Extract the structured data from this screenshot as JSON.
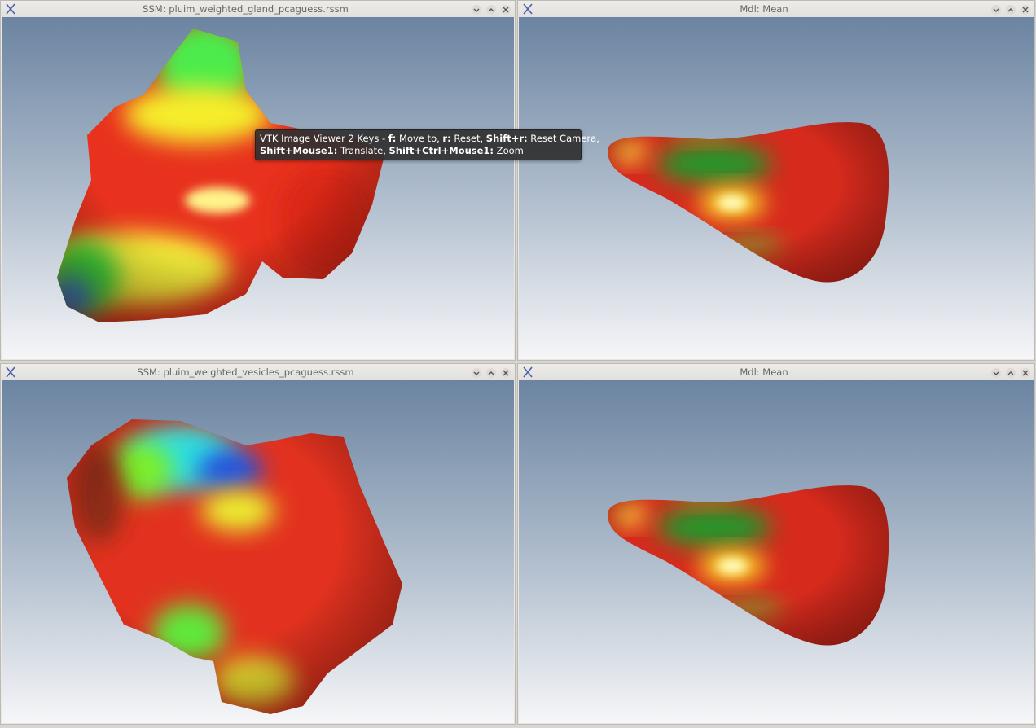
{
  "windows": [
    {
      "title": "SSM: pluim_weighted_gland_pcaguess.rssm"
    },
    {
      "title": "Mdl: Mean"
    },
    {
      "title": "SSM: pluim_weighted_vesicles_pcaguess.rssm"
    },
    {
      "title": "Mdl: Mean"
    }
  ],
  "tooltip": {
    "lines": [
      [
        {
          "text": "VTK Image Viewer 2 Keys - ",
          "bold": false
        },
        {
          "text": "f:",
          "bold": true
        },
        {
          "text": " Move to, ",
          "bold": false
        },
        {
          "text": "r:",
          "bold": true
        },
        {
          "text": " Reset, ",
          "bold": false
        },
        {
          "text": "Shift+r:",
          "bold": true
        },
        {
          "text": " Reset Camera,",
          "bold": false
        }
      ],
      [
        {
          "text": "Shift+Mouse1:",
          "bold": true
        },
        {
          "text": " Translate, ",
          "bold": false
        },
        {
          "text": "Shift+Ctrl+Mouse1:",
          "bold": true
        },
        {
          "text": " Zoom",
          "bold": false
        }
      ]
    ]
  }
}
